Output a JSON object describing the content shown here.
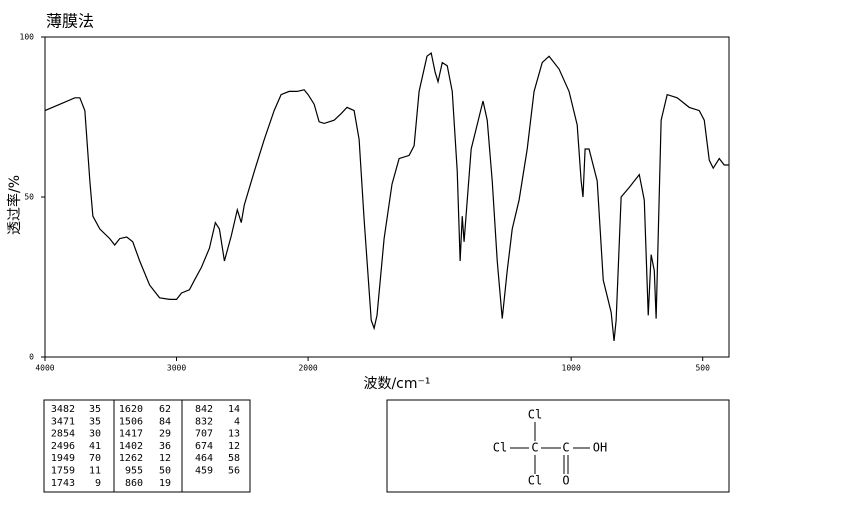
{
  "chart_data": {
    "type": "line",
    "title": "薄膜法",
    "x_label": "波数/cm⁻¹",
    "y_label": "透过率/%",
    "xlim": [
      4000,
      400
    ],
    "x_scale_change": 2000,
    "xticks": [
      4000,
      3000,
      2000,
      1000,
      500
    ],
    "ylim": [
      0,
      100
    ],
    "yticks": [
      0,
      50,
      100
    ],
    "grid": false,
    "series": [
      {
        "name": "spectrum",
        "color": "#000000",
        "x": [
          4000,
          3886,
          3773,
          3735,
          3697,
          3659,
          3636,
          3583,
          3508,
          3470,
          3432,
          3379,
          3333,
          3280,
          3205,
          3129,
          3053,
          3000,
          2962,
          2902,
          2864,
          2811,
          2750,
          2705,
          2674,
          2636,
          2583,
          2538,
          2508,
          2485,
          2409,
          2333,
          2258,
          2205,
          2144,
          2083,
          2030,
          2000,
          1977,
          1958,
          1939,
          1901,
          1875,
          1852,
          1825,
          1806,
          1787,
          1760,
          1749,
          1738,
          1711,
          1681,
          1654,
          1616,
          1597,
          1578,
          1548,
          1532,
          1517,
          1506,
          1490,
          1471,
          1452,
          1433,
          1422,
          1414,
          1407,
          1395,
          1380,
          1350,
          1335,
          1319,
          1300,
          1281,
          1262,
          1243,
          1224,
          1198,
          1167,
          1141,
          1110,
          1084,
          1046,
          1008,
          977,
          962,
          955,
          947,
          932,
          901,
          878,
          863,
          848,
          837,
          829,
          810,
          779,
          741,
          722,
          707,
          696,
          684,
          677,
          658,
          635,
          597,
          551,
          513,
          494,
          475,
          460,
          437,
          418,
          400
        ],
        "values": [
          77,
          79,
          81,
          81,
          77,
          55,
          44,
          40,
          37,
          35,
          37,
          37.5,
          36,
          30,
          22.5,
          18.5,
          18,
          18,
          20,
          21,
          24,
          28,
          34,
          42,
          40,
          30,
          38,
          46,
          42,
          47.5,
          58,
          68,
          77,
          82,
          83,
          83,
          83.5,
          82,
          79,
          73.5,
          73,
          74,
          76,
          78,
          77,
          68,
          43,
          11.5,
          9,
          13,
          37,
          54,
          62,
          63,
          66,
          83,
          94,
          95,
          89,
          86,
          92,
          91,
          83,
          58,
          30,
          44,
          36,
          49,
          65,
          75,
          80,
          74,
          55,
          30,
          12,
          27,
          40,
          49,
          65,
          83,
          92,
          94,
          90,
          83,
          72.5,
          55,
          50,
          65,
          65,
          55,
          24,
          19,
          14,
          5,
          11.5,
          50,
          53,
          57,
          49,
          13,
          32,
          27,
          12,
          74,
          82,
          81,
          78,
          77,
          74,
          61.5,
          59,
          62,
          60,
          60
        ]
      }
    ]
  },
  "peak_table": {
    "rows": [
      [
        [
          "3482",
          "35"
        ],
        [
          "1620",
          "62"
        ],
        [
          "842",
          "14"
        ]
      ],
      [
        [
          "3471",
          "35"
        ],
        [
          "1506",
          "84"
        ],
        [
          "832",
          "4"
        ]
      ],
      [
        [
          "2854",
          "30"
        ],
        [
          "1417",
          "29"
        ],
        [
          "707",
          "13"
        ]
      ],
      [
        [
          "2496",
          "41"
        ],
        [
          "1402",
          "36"
        ],
        [
          "674",
          "12"
        ]
      ],
      [
        [
          "1949",
          "70"
        ],
        [
          "1262",
          "12"
        ],
        [
          "464",
          "58"
        ]
      ],
      [
        [
          "1759",
          "11"
        ],
        [
          "955",
          "50"
        ],
        [
          "459",
          "56"
        ]
      ],
      [
        [
          "1743",
          "9"
        ],
        [
          "860",
          "19"
        ]
      ]
    ]
  },
  "structure": {
    "atoms": [
      "Cl",
      "Cl",
      "C",
      "C",
      "OH",
      "O",
      "Cl"
    ]
  }
}
